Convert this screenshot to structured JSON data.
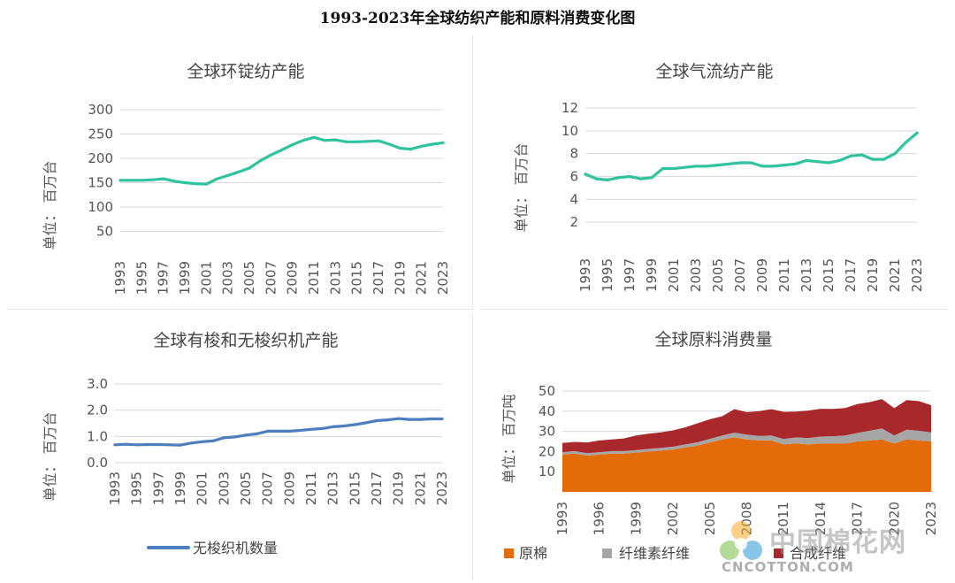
{
  "page_title": "1993-2023年全球纺织产能和原料消费变化图",
  "colors": {
    "teal": "#2fc49f",
    "blue": "#4d7ebf",
    "orange": "#e36c09",
    "gray": "#a6a6a6",
    "darkred": "#a9282c"
  },
  "watermark": {
    "logo": "cotton-boll-logo",
    "cn_text": "中国棉花网",
    "en_text": "CNCOTTON.COM"
  },
  "chart_data": [
    {
      "type": "line",
      "title": "全球环锭纺产能",
      "ylabel": "单位： 百万台",
      "xlabel": "",
      "ylim": [
        0,
        300
      ],
      "yticks": [
        50,
        100,
        150,
        200,
        250,
        300
      ],
      "grid": true,
      "legend": "none",
      "x_ticks": [
        "1993",
        "1995",
        "1997",
        "1999",
        "2001",
        "2003",
        "2005",
        "2007",
        "2009",
        "2011",
        "2013",
        "2015",
        "2017",
        "2019",
        "2021",
        "2023"
      ],
      "x": [
        1993,
        1994,
        1995,
        1996,
        1997,
        1998,
        1999,
        2000,
        2001,
        2002,
        2003,
        2004,
        2005,
        2006,
        2007,
        2008,
        2009,
        2010,
        2011,
        2012,
        2013,
        2014,
        2015,
        2016,
        2017,
        2018,
        2019,
        2020,
        2021,
        2022,
        2023
      ],
      "series": [
        {
          "color": "#2fc49f",
          "values": [
            155,
            155,
            155,
            156,
            158,
            153,
            150,
            148,
            147,
            158,
            165,
            172,
            180,
            195,
            207,
            217,
            228,
            237,
            243,
            237,
            238,
            234,
            234,
            235,
            236,
            229,
            221,
            219,
            225,
            229,
            232
          ]
        }
      ]
    },
    {
      "type": "line",
      "title": "全球气流纺产能",
      "ylabel": "单位： 百万台",
      "xlabel": "",
      "ylim": [
        0,
        12
      ],
      "yticks": [
        2,
        4,
        6,
        8,
        10,
        12
      ],
      "grid": true,
      "legend": "none",
      "x_ticks": [
        "1993",
        "1995",
        "1997",
        "1999",
        "2001",
        "2003",
        "2005",
        "2007",
        "2009",
        "2011",
        "2013",
        "2015",
        "2017",
        "2019",
        "2021",
        "2023"
      ],
      "x": [
        1993,
        1994,
        1995,
        1996,
        1997,
        1998,
        1999,
        2000,
        2001,
        2002,
        2003,
        2004,
        2005,
        2006,
        2007,
        2008,
        2009,
        2010,
        2011,
        2012,
        2013,
        2014,
        2015,
        2016,
        2017,
        2018,
        2019,
        2020,
        2021,
        2022,
        2023
      ],
      "series": [
        {
          "color": "#2fc49f",
          "values": [
            6.2,
            5.8,
            5.7,
            5.9,
            6.0,
            5.8,
            5.9,
            6.7,
            6.7,
            6.8,
            6.9,
            6.9,
            7.0,
            7.1,
            7.2,
            7.2,
            6.9,
            6.9,
            7.0,
            7.1,
            7.4,
            7.3,
            7.2,
            7.4,
            7.8,
            7.9,
            7.5,
            7.5,
            8.0,
            9.0,
            9.8
          ]
        }
      ]
    },
    {
      "type": "line",
      "title": "全球有梭和无梭织机产能",
      "ylabel": "单位： 百万台",
      "xlabel": "",
      "ylim": [
        0,
        3
      ],
      "yticks": [
        "0.0",
        "1.0",
        "2.0",
        "3.0"
      ],
      "grid": true,
      "legend": "bottom-left",
      "x_ticks": [
        "1993",
        "1995",
        "1997",
        "1999",
        "2001",
        "2003",
        "2005",
        "2007",
        "2009",
        "2011",
        "2013",
        "2015",
        "2017",
        "2019",
        "2021",
        "2023"
      ],
      "x": [
        1993,
        1994,
        1995,
        1996,
        1997,
        1998,
        1999,
        2000,
        2001,
        2002,
        2003,
        2004,
        2005,
        2006,
        2007,
        2008,
        2009,
        2010,
        2011,
        2012,
        2013,
        2014,
        2015,
        2016,
        2017,
        2018,
        2019,
        2020,
        2021,
        2022,
        2023
      ],
      "series": [
        {
          "name": "无梭织机数量",
          "color": "#4d7ebf",
          "values": [
            0.68,
            0.7,
            0.68,
            0.69,
            0.69,
            0.68,
            0.67,
            0.75,
            0.8,
            0.83,
            0.95,
            0.98,
            1.05,
            1.1,
            1.2,
            1.2,
            1.2,
            1.23,
            1.27,
            1.3,
            1.37,
            1.4,
            1.45,
            1.52,
            1.6,
            1.63,
            1.68,
            1.65,
            1.65,
            1.67,
            1.67
          ]
        }
      ]
    },
    {
      "type": "area",
      "stacked": true,
      "title": "全球原料消费量",
      "ylabel": "单位： 百万吨",
      "xlabel": "",
      "ylim": [
        0,
        50
      ],
      "yticks": [
        10,
        20,
        30,
        40,
        50
      ],
      "grid": true,
      "legend": "bottom",
      "x_ticks": [
        "1993",
        "1996",
        "1999",
        "2002",
        "2005",
        "2008",
        "2011",
        "2014",
        "2017",
        "2020",
        "2023"
      ],
      "x": [
        1993,
        1994,
        1995,
        1996,
        1997,
        1998,
        1999,
        2000,
        2001,
        2002,
        2003,
        2004,
        2005,
        2006,
        2007,
        2008,
        2009,
        2010,
        2011,
        2012,
        2013,
        2014,
        2015,
        2016,
        2017,
        2018,
        2019,
        2020,
        2021,
        2022,
        2023
      ],
      "series": [
        {
          "name": "原棉",
          "color": "#e36c09",
          "values": [
            18.5,
            19,
            18,
            18.5,
            19,
            19,
            19.5,
            20,
            20.5,
            21,
            22,
            23,
            24.5,
            26,
            27,
            26,
            25.5,
            25.5,
            23.5,
            24,
            23.5,
            24,
            24,
            24,
            25,
            25.5,
            26,
            24,
            26,
            25.5,
            25
          ]
        },
        {
          "name": "纤维素纤维",
          "color": "#a6a6a6",
          "values": [
            1.2,
            1.2,
            1.2,
            1.2,
            1.2,
            1.2,
            1.2,
            1.3,
            1.3,
            1.4,
            1.5,
            1.6,
            1.8,
            2,
            2.4,
            2.4,
            2.2,
            2.5,
            2.7,
            3,
            3.2,
            3.4,
            3.6,
            4,
            4.2,
            4.8,
            5.5,
            4,
            4.8,
            4.8,
            4.5
          ]
        },
        {
          "name": "合成纤维",
          "color": "#a9282c",
          "values": [
            4.5,
            4.6,
            5.3,
            5.8,
            5.8,
            6.3,
            7.3,
            7.5,
            7.7,
            8.1,
            8.5,
            9.4,
            9.7,
            9.5,
            11.6,
            11.1,
            12.3,
            13,
            13.5,
            12.8,
            13.6,
            13.8,
            13.5,
            13.6,
            14.3,
            14.2,
            14.5,
            13.5,
            14.7,
            14.7,
            13.5
          ]
        }
      ]
    }
  ]
}
